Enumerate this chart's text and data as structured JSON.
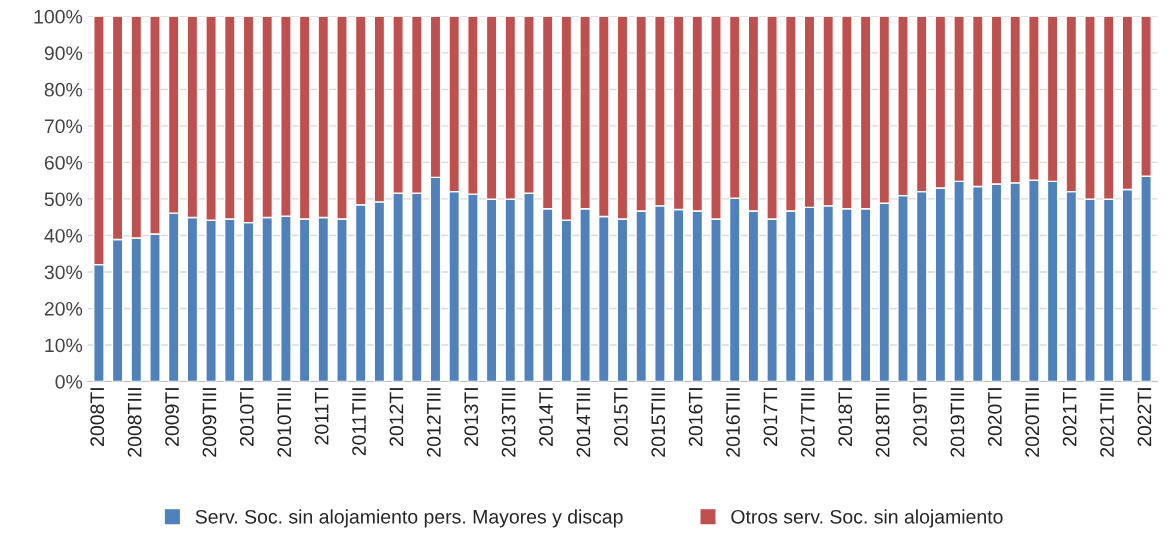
{
  "chart_data": {
    "type": "bar",
    "stacked": true,
    "categories": [
      "2008TI",
      null,
      "2008TIII",
      null,
      "2009TI",
      null,
      "2009TIII",
      null,
      "2010TI",
      null,
      "2010TIII",
      null,
      "2011TI",
      null,
      "2011TIII",
      null,
      "2012TI",
      null,
      "2012TIII",
      null,
      "2013TI",
      null,
      "2013TIII",
      null,
      "2014TI",
      null,
      "2014TIII",
      null,
      "2015TI",
      null,
      "2015TIII",
      null,
      "2016TI",
      null,
      "2016TIII",
      null,
      "2017TI",
      null,
      "2017TIII",
      null,
      "2018TI",
      null,
      "2018TIII",
      null,
      "2019TI",
      null,
      "2019TIII",
      null,
      "2020TI",
      null,
      "2020TIII",
      null,
      "2021TI",
      null,
      "2021TIII",
      null,
      "2022TI"
    ],
    "series": [
      {
        "name": "Serv. Soc. sin alojamiento pers. Mayores y discap",
        "color": "#4f81bd",
        "values": [
          32,
          38.9,
          39.3,
          40.4,
          46.1,
          44.9,
          44.2,
          44.5,
          43.5,
          44.9,
          45.3,
          44.5,
          44.9,
          44.5,
          48.4,
          49.2,
          51.6,
          51.6,
          55.9,
          52,
          51.3,
          49.9,
          49.9,
          51.6,
          47.3,
          44.2,
          47.3,
          45.2,
          44.5,
          46.7,
          48.1,
          47.1,
          46.7,
          44.5,
          50.2,
          46.7,
          44.5,
          46.7,
          47.7,
          48.1,
          47.3,
          47.3,
          48.8,
          50.9,
          52,
          53,
          54.8,
          53.4,
          54.1,
          54.4,
          55.1,
          54.8,
          52,
          49.9,
          49.9,
          52.6,
          56.2
        ]
      },
      {
        "name": "Otros serv. Soc. sin alojamiento",
        "color": "#c0504d",
        "values": [
          68,
          61.1,
          60.7,
          59.6,
          53.9,
          55.1,
          55.8,
          55.5,
          56.5,
          55.1,
          54.7,
          55.5,
          55.1,
          55.5,
          51.6,
          50.8,
          48.4,
          48.4,
          44.1,
          48,
          48.7,
          50.1,
          50.1,
          48.4,
          52.7,
          55.8,
          52.7,
          54.8,
          55.5,
          53.3,
          51.9,
          52.9,
          53.3,
          55.5,
          49.8,
          53.3,
          55.5,
          53.3,
          52.3,
          51.9,
          52.7,
          52.7,
          51.2,
          49.1,
          48,
          47,
          45.2,
          46.6,
          45.9,
          45.6,
          44.9,
          45.2,
          48,
          50.1,
          50.1,
          47.4,
          43.8
        ]
      }
    ],
    "ylim": [
      0,
      100
    ],
    "yticks": [
      {
        "value": 0,
        "label": "0%"
      },
      {
        "value": 10,
        "label": "10%"
      },
      {
        "value": 20,
        "label": "20%"
      },
      {
        "value": 30,
        "label": "30%"
      },
      {
        "value": 40,
        "label": "40%"
      },
      {
        "value": 50,
        "label": "50%"
      },
      {
        "value": 60,
        "label": "60%"
      },
      {
        "value": 70,
        "label": "70%"
      },
      {
        "value": 80,
        "label": "80%"
      },
      {
        "value": 90,
        "label": "90%"
      },
      {
        "value": 100,
        "label": "100%"
      }
    ],
    "grid": "y",
    "legend": "bottom"
  }
}
